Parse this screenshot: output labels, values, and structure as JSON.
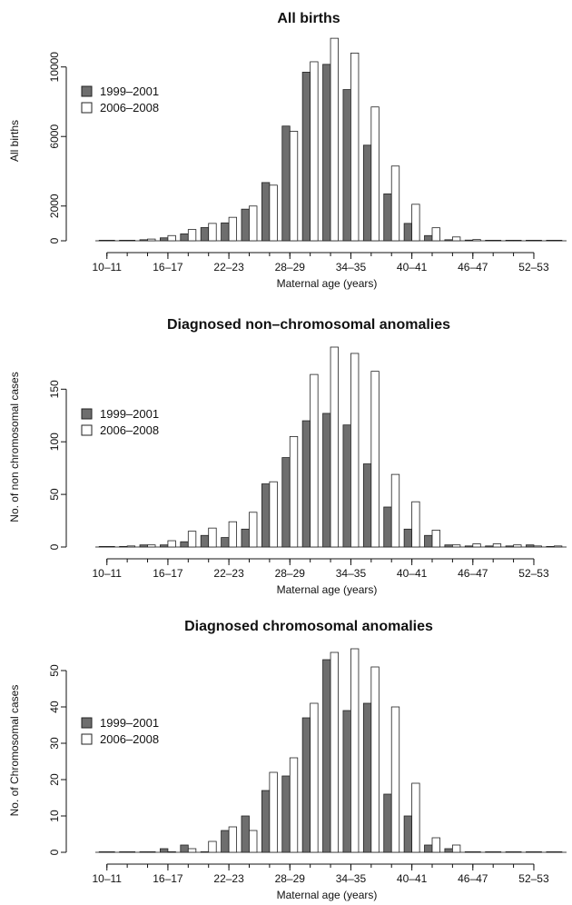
{
  "chart_data": [
    {
      "type": "bar",
      "title": "All births",
      "xlabel": "Maternal age (years)",
      "ylabel": "All births",
      "ylim": [
        0,
        11500
      ],
      "yticks": [
        0,
        2000,
        6000,
        10000
      ],
      "categories": [
        "10-11",
        "12-13",
        "14-15",
        "16-17",
        "18-19",
        "20-21",
        "22-23",
        "24-25",
        "26-27",
        "28-29",
        "30-31",
        "32-33",
        "34-35",
        "36-37",
        "38-39",
        "40-41",
        "42-43",
        "44-45",
        "46-47",
        "48-49",
        "50-51",
        "52-53",
        "54-55"
      ],
      "xtick_labels": [
        "10–11",
        "16–17",
        "22–23",
        "28–29",
        "34–35",
        "40–41",
        "46–47",
        "52–53"
      ],
      "xtick_indices": [
        0,
        3,
        6,
        9,
        12,
        15,
        18,
        21
      ],
      "series": [
        {
          "name": "1999–2001",
          "color": "#6e6e6e",
          "values": [
            3,
            10,
            60,
            170,
            400,
            760,
            1030,
            1820,
            3350,
            6600,
            9700,
            10150,
            8700,
            5500,
            2700,
            1000,
            300,
            60,
            40,
            20,
            10,
            5,
            2
          ]
        },
        {
          "name": "2006–2008",
          "color": "#ffffff",
          "values": [
            5,
            20,
            100,
            300,
            650,
            1000,
            1350,
            2000,
            3200,
            6300,
            10300,
            11650,
            10800,
            7700,
            4300,
            2100,
            750,
            220,
            70,
            30,
            15,
            8,
            3
          ]
        }
      ],
      "legend": "left"
    },
    {
      "type": "bar",
      "title": "Diagnosed non–chromosomal anomalies",
      "xlabel": "Maternal age (years)",
      "ylabel": "No. of non chromosomal cases",
      "ylim": [
        0,
        190
      ],
      "yticks": [
        0,
        50,
        100,
        150
      ],
      "categories": [
        "10-11",
        "12-13",
        "14-15",
        "16-17",
        "18-19",
        "20-21",
        "22-23",
        "24-25",
        "26-27",
        "28-29",
        "30-31",
        "32-33",
        "34-35",
        "36-37",
        "38-39",
        "40-41",
        "42-43",
        "44-45",
        "46-47",
        "48-49",
        "50-51",
        "52-53",
        "54-55"
      ],
      "xtick_labels": [
        "10–11",
        "16–17",
        "22–23",
        "28–29",
        "34–35",
        "40–41",
        "46–47",
        "52–53"
      ],
      "xtick_indices": [
        0,
        3,
        6,
        9,
        12,
        15,
        18,
        21
      ],
      "series": [
        {
          "name": "1999–2001",
          "color": "#6e6e6e",
          "values": [
            0,
            0,
            2,
            2,
            5,
            11,
            9,
            17,
            60,
            85,
            120,
            127,
            116,
            79,
            38,
            17,
            11,
            2,
            1,
            1,
            1,
            2,
            0
          ]
        },
        {
          "name": "2006–2008",
          "color": "#ffffff",
          "values": [
            0,
            1,
            2,
            6,
            15,
            18,
            24,
            33,
            62,
            105,
            164,
            190,
            184,
            167,
            69,
            43,
            16,
            2,
            3,
            3,
            2,
            1,
            1
          ]
        }
      ],
      "legend": "left"
    },
    {
      "type": "bar",
      "title": "Diagnosed chromosomal anomalies",
      "xlabel": "Maternal age (years)",
      "ylabel": "No. of Chromosomal cases",
      "ylim": [
        0,
        56
      ],
      "yticks": [
        0,
        10,
        20,
        30,
        40,
        50
      ],
      "categories": [
        "10-11",
        "12-13",
        "14-15",
        "16-17",
        "18-19",
        "20-21",
        "22-23",
        "24-25",
        "26-27",
        "28-29",
        "30-31",
        "32-33",
        "34-35",
        "36-37",
        "38-39",
        "40-41",
        "42-43",
        "44-45",
        "46-47",
        "48-49",
        "50-51",
        "52-53",
        "54-55"
      ],
      "xtick_labels": [
        "10–11",
        "16–17",
        "22–23",
        "28–29",
        "34–35",
        "40–41",
        "46–47",
        "52–53"
      ],
      "xtick_indices": [
        0,
        3,
        6,
        9,
        12,
        15,
        18,
        21
      ],
      "series": [
        {
          "name": "1999–2001",
          "color": "#6e6e6e",
          "values": [
            0,
            0,
            0,
            1,
            2,
            0,
            6,
            10,
            17,
            21,
            37,
            53,
            39,
            41,
            16,
            10,
            2,
            1,
            0,
            0,
            0,
            0,
            0
          ]
        },
        {
          "name": "2006–2008",
          "color": "#ffffff",
          "values": [
            0,
            0,
            0,
            0,
            1,
            3,
            7,
            6,
            22,
            26,
            41,
            55,
            56,
            51,
            40,
            19,
            4,
            2,
            0,
            0,
            0,
            0,
            0
          ]
        }
      ],
      "legend": "left"
    }
  ]
}
